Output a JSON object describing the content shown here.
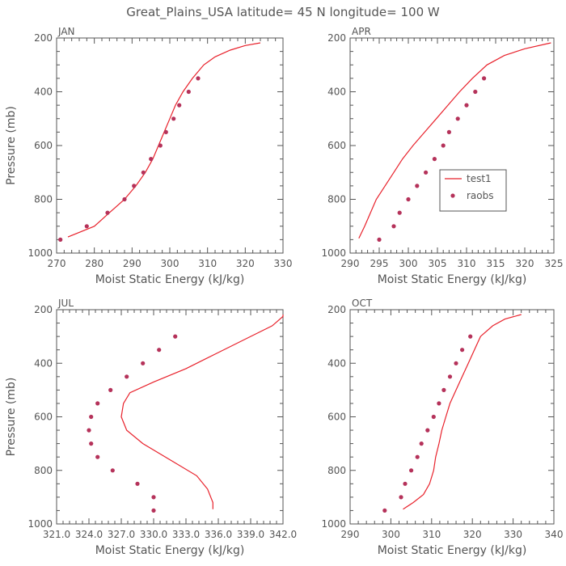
{
  "title": "Great_Plains_USA   latitude= 45 N longitude= 100 W",
  "colors": {
    "model": "#e8212b",
    "obs": "#b5325a",
    "axis": "#555555"
  },
  "chart_data": [
    {
      "type": "line",
      "panel": "JAN",
      "xlabel": "Moist Static Energy (kJ/kg)",
      "ylabel": "Pressure (mb)",
      "xlim": [
        270,
        330
      ],
      "ylim": [
        1000,
        200
      ],
      "xticks": [
        270,
        280,
        290,
        300,
        310,
        320,
        330
      ],
      "xtick_labels": [
        "270",
        "280",
        "290",
        "300",
        "310",
        "320",
        "330"
      ],
      "yticks": [
        200,
        400,
        600,
        800,
        1000
      ],
      "ytick_labels": [
        "200",
        "400",
        "600",
        "800",
        "1000"
      ],
      "series": [
        {
          "kind": "line",
          "points": [
            [
              273,
              940
            ],
            [
              280,
              900
            ],
            [
              284,
              850
            ],
            [
              288,
              800
            ],
            [
              291,
              750
            ],
            [
              293.5,
              700
            ],
            [
              295.5,
              650
            ],
            [
              297,
              600
            ],
            [
              298.5,
              550
            ],
            [
              300,
              500
            ],
            [
              301.5,
              450
            ],
            [
              303.5,
              400
            ],
            [
              306,
              350
            ],
            [
              309,
              300
            ],
            [
              312,
              270
            ],
            [
              316,
              245
            ],
            [
              320,
              228
            ],
            [
              324,
              218
            ]
          ]
        },
        {
          "kind": "dots",
          "points": [
            [
              271,
              950
            ],
            [
              278,
              900
            ],
            [
              283.5,
              850
            ],
            [
              288,
              800
            ],
            [
              290.5,
              750
            ],
            [
              293,
              700
            ],
            [
              295,
              650
            ],
            [
              297.5,
              600
            ],
            [
              299,
              550
            ],
            [
              301,
              500
            ],
            [
              302.5,
              450
            ],
            [
              305,
              400
            ],
            [
              307.5,
              350
            ]
          ]
        }
      ]
    },
    {
      "type": "line",
      "panel": "APR",
      "xlabel": "Moist Static Energy (kJ/kg)",
      "ylabel": "",
      "xlim": [
        290,
        325
      ],
      "ylim": [
        1000,
        200
      ],
      "xticks": [
        290,
        295,
        300,
        305,
        310,
        315,
        320,
        325
      ],
      "xtick_labels": [
        "290",
        "295",
        "300",
        "305",
        "310",
        "315",
        "320",
        "325"
      ],
      "yticks": [
        200,
        400,
        600,
        800,
        1000
      ],
      "ytick_labels": [
        "200",
        "400",
        "600",
        "800",
        "1000"
      ],
      "legend": {
        "position": "right",
        "entries": [
          {
            "label": "test1",
            "kind": "line"
          },
          {
            "label": "raobs",
            "kind": "dots"
          }
        ]
      },
      "series": [
        {
          "name": "test1",
          "kind": "line",
          "points": [
            [
              291.5,
              945
            ],
            [
              292.5,
              900
            ],
            [
              293.5,
              850
            ],
            [
              294.5,
              800
            ],
            [
              296,
              750
            ],
            [
              297.5,
              700
            ],
            [
              299,
              650
            ],
            [
              300.8,
              600
            ],
            [
              302.8,
              550
            ],
            [
              304.8,
              500
            ],
            [
              306.8,
              450
            ],
            [
              308.8,
              400
            ],
            [
              311,
              350
            ],
            [
              313.5,
              300
            ],
            [
              316.5,
              265
            ],
            [
              320,
              240
            ],
            [
              324.5,
              218
            ]
          ]
        },
        {
          "name": "raobs",
          "kind": "dots",
          "points": [
            [
              295,
              950
            ],
            [
              297.5,
              900
            ],
            [
              298.5,
              850
            ],
            [
              300,
              800
            ],
            [
              301.5,
              750
            ],
            [
              303,
              700
            ],
            [
              304.5,
              650
            ],
            [
              306,
              600
            ],
            [
              307,
              550
            ],
            [
              308.5,
              500
            ],
            [
              310,
              450
            ],
            [
              311.5,
              400
            ],
            [
              313,
              350
            ]
          ]
        }
      ]
    },
    {
      "type": "line",
      "panel": "JUL",
      "xlabel": "Moist Static Energy (kJ/kg)",
      "ylabel": "Pressure (mb)",
      "xlim": [
        321.0,
        342.0
      ],
      "ylim": [
        1000,
        200
      ],
      "xticks": [
        321.0,
        324.0,
        327.0,
        330.0,
        333.0,
        336.0,
        339.0,
        342.0
      ],
      "xtick_labels": [
        "321.0",
        "324.0",
        "327.0",
        "330.0",
        "333.0",
        "336.0",
        "339.0",
        "342.0"
      ],
      "yticks": [
        200,
        400,
        600,
        800,
        1000
      ],
      "ytick_labels": [
        "200",
        "400",
        "600",
        "800",
        "1000"
      ],
      "series": [
        {
          "kind": "line",
          "points": [
            [
              335.5,
              945
            ],
            [
              335.5,
              920
            ],
            [
              335,
              870
            ],
            [
              334,
              820
            ],
            [
              331.5,
              760
            ],
            [
              329,
              700
            ],
            [
              327.5,
              650
            ],
            [
              327,
              600
            ],
            [
              327.2,
              550
            ],
            [
              327.8,
              510
            ],
            [
              330,
              470
            ],
            [
              333,
              420
            ],
            [
              336,
              360
            ],
            [
              339,
              300
            ],
            [
              341,
              260
            ],
            [
              342,
              225
            ],
            [
              342,
              218
            ]
          ]
        },
        {
          "kind": "dots",
          "points": [
            [
              332,
              300
            ],
            [
              330.5,
              350
            ],
            [
              329,
              400
            ],
            [
              327.5,
              450
            ],
            [
              326,
              500
            ],
            [
              324.8,
              550
            ],
            [
              324.2,
              600
            ],
            [
              324,
              650
            ],
            [
              324.2,
              700
            ],
            [
              324.8,
              750
            ],
            [
              326.2,
              800
            ],
            [
              328.5,
              850
            ],
            [
              330,
              900
            ],
            [
              330,
              950
            ]
          ]
        }
      ]
    },
    {
      "type": "line",
      "panel": "OCT",
      "xlabel": "Moist Static Energy (kJ/kg)",
      "ylabel": "",
      "xlim": [
        290,
        340
      ],
      "ylim": [
        1000,
        200
      ],
      "xticks": [
        290,
        300,
        310,
        320,
        330,
        340
      ],
      "xtick_labels": [
        "290",
        "300",
        "310",
        "320",
        "330",
        "340"
      ],
      "yticks": [
        200,
        400,
        600,
        800,
        1000
      ],
      "ytick_labels": [
        "200",
        "400",
        "600",
        "800",
        "1000"
      ],
      "series": [
        {
          "kind": "line",
          "points": [
            [
              303,
              945
            ],
            [
              305.5,
              920
            ],
            [
              308,
              890
            ],
            [
              309.5,
              850
            ],
            [
              310.5,
              800
            ],
            [
              311,
              750
            ],
            [
              311.8,
              700
            ],
            [
              312.5,
              650
            ],
            [
              313.5,
              600
            ],
            [
              314.5,
              550
            ],
            [
              316,
              500
            ],
            [
              317.5,
              450
            ],
            [
              319,
              400
            ],
            [
              320.5,
              350
            ],
            [
              322,
              300
            ],
            [
              325,
              260
            ],
            [
              328,
              235
            ],
            [
              332,
              218
            ]
          ]
        },
        {
          "kind": "dots",
          "points": [
            [
              298.5,
              950
            ],
            [
              302.5,
              900
            ],
            [
              303.5,
              850
            ],
            [
              305,
              800
            ],
            [
              306.5,
              750
            ],
            [
              307.5,
              700
            ],
            [
              309,
              650
            ],
            [
              310.5,
              600
            ],
            [
              311.8,
              550
            ],
            [
              313,
              500
            ],
            [
              314.5,
              450
            ],
            [
              316,
              400
            ],
            [
              317.5,
              350
            ],
            [
              319.5,
              300
            ]
          ]
        }
      ]
    }
  ]
}
